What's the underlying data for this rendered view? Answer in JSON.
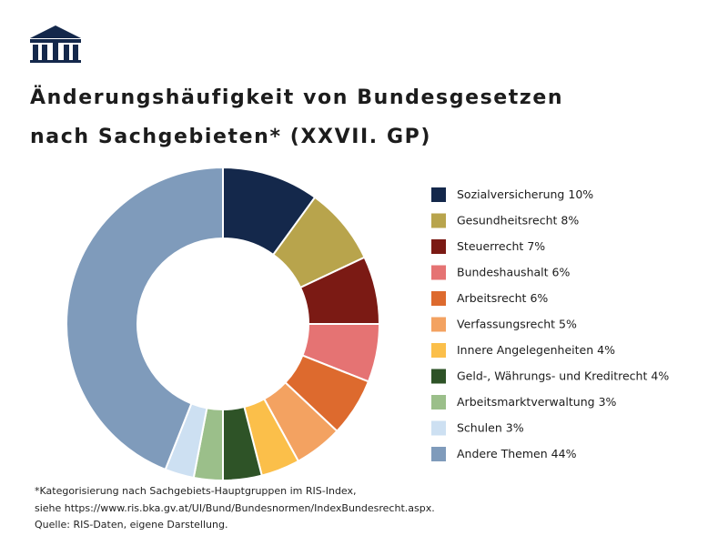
{
  "chart_data": {
    "type": "donut",
    "title": "Änderungshäufigkeit von Bundesgesetzen nach Sachgebieten* (XXVII. GP)",
    "categories": [
      "Sozialversicherung",
      "Gesundheitsrecht",
      "Steuerrecht",
      "Bundeshaushalt",
      "Arbeitsrecht",
      "Verfassungsrecht",
      "Innere Angelegenheiten",
      "Geld-, Währungs- und Kreditrecht",
      "Arbeitsmarktverwaltung",
      "Schulen",
      "Andere Themen"
    ],
    "values": [
      10,
      8,
      7,
      6,
      6,
      5,
      4,
      4,
      3,
      3,
      44
    ],
    "value_labels": [
      "10%",
      "8%",
      "7%",
      "6%",
      "6%",
      "5%",
      "4%",
      "4%",
      "3%",
      "3%",
      "44%"
    ],
    "colors": [
      "#14284b",
      "#b8a44c",
      "#7b1a14",
      "#e57373",
      "#dd6a2e",
      "#f3a261",
      "#fbbf4a",
      "#2e5327",
      "#9bbf8a",
      "#cde0f2",
      "#7f9bbb"
    ],
    "legend": "right",
    "notes": [
      "*Kategorisierung nach Sachgebiets-Hauptgruppen im RIS-Index,",
      "siehe https://www.ris.bka.gv.at/UI/Bund/Bundesnormen/IndexBundesrecht.aspx.",
      "Quelle: RIS-Daten, eigene Darstellung."
    ]
  }
}
